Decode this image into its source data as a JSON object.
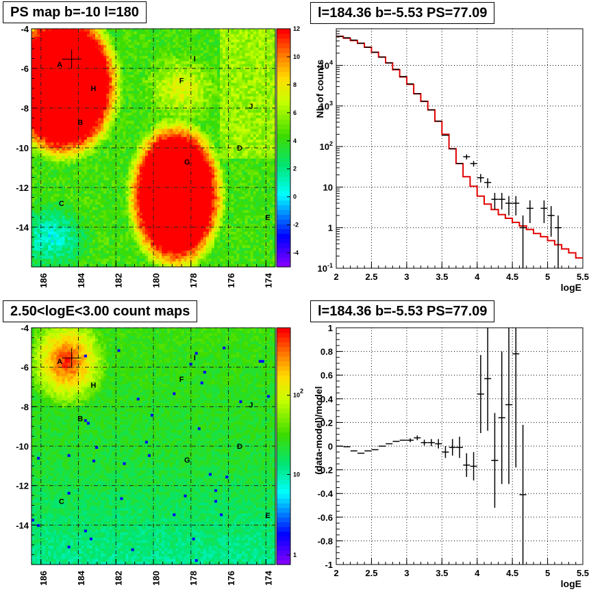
{
  "titles": {
    "tl": "PS map b=-10 l=180",
    "tr": "l=184.36 b=-5.53 PS=77.09",
    "bl": "2.50<logE<3.00 count maps",
    "br": "l=184.36 b=-5.53 PS=77.09"
  },
  "chart_data": [
    {
      "type": "heatmap",
      "panel": "ps-map",
      "title": "PS map b=-10 l=180",
      "xlim": [
        186.5,
        173.5
      ],
      "ylim": [
        -16,
        -4
      ],
      "x_ticks": [
        "186",
        "184",
        "182",
        "180",
        "178",
        "176",
        "174"
      ],
      "y_ticks": [
        "-4",
        "-6",
        "-8",
        "-10",
        "-12",
        "-14"
      ],
      "colorbar_range": [
        -5,
        12
      ],
      "colorbar_ticks": [
        "12",
        "10",
        "8",
        "6",
        "4",
        "2",
        "0",
        "-2",
        "-4"
      ],
      "grid": true,
      "markers": [
        {
          "label": "A",
          "l": 185.0,
          "b": -5.8
        },
        {
          "label": "H",
          "l": 183.2,
          "b": -7.0
        },
        {
          "label": "B",
          "l": 183.9,
          "b": -8.7
        },
        {
          "label": "I",
          "l": 177.8,
          "b": -5.5
        },
        {
          "label": "F",
          "l": 178.5,
          "b": -6.6
        },
        {
          "label": "J",
          "l": 174.8,
          "b": -7.9
        },
        {
          "label": "D",
          "l": 175.4,
          "b": -10.0
        },
        {
          "label": "G",
          "l": 178.2,
          "b": -10.7
        },
        {
          "label": "C",
          "l": 184.9,
          "b": -12.8
        },
        {
          "label": "E",
          "l": 173.9,
          "b": -13.5
        }
      ],
      "source_cross": {
        "l": 184.36,
        "b": -5.53
      }
    },
    {
      "type": "line",
      "panel": "spectrum",
      "title": "l=184.36 b=-5.53 PS=77.09",
      "xlabel": "logE",
      "ylabel": "Nb of counts",
      "xlim": [
        2,
        5.5
      ],
      "ylim": [
        0.1,
        80000
      ],
      "yscale": "log",
      "x_ticks": [
        "2",
        "2.5",
        "3",
        "3.5",
        "4",
        "4.5",
        "5",
        "5.5"
      ],
      "y_ticks": [
        "10^-1",
        "1",
        "10",
        "10^2",
        "10^3",
        "10^4"
      ],
      "grid": true,
      "model_color": "#e00000",
      "x_edges": [
        2.0,
        2.1,
        2.2,
        2.3,
        2.4,
        2.5,
        2.6,
        2.7,
        2.8,
        2.9,
        3.0,
        3.1,
        3.2,
        3.3,
        3.4,
        3.5,
        3.6,
        3.7,
        3.8,
        3.9,
        4.0,
        4.1,
        4.2,
        4.3,
        4.4,
        4.5,
        4.6,
        4.7,
        4.8,
        4.9,
        5.0,
        5.1,
        5.2,
        5.3,
        5.4,
        5.5
      ],
      "model": [
        52000,
        47000,
        41000,
        35000,
        28000,
        21000,
        16000,
        11500,
        7800,
        5200,
        3400,
        2000,
        1300,
        800,
        420,
        200,
        88,
        38,
        18,
        10.5,
        6,
        3.8,
        2.8,
        2.1,
        1.7,
        1.35,
        1.1,
        0.9,
        0.72,
        0.6,
        0.48,
        0.38,
        0.3,
        0.24,
        0.18
      ],
      "data": [
        {
          "x": 2.05,
          "y": 52000,
          "err": 0
        },
        {
          "x": 2.15,
          "y": 48000,
          "err": 0
        },
        {
          "x": 2.25,
          "y": 42000,
          "err": 0
        },
        {
          "x": 2.35,
          "y": 35000,
          "err": 0
        },
        {
          "x": 2.45,
          "y": 28000,
          "err": 0
        },
        {
          "x": 2.55,
          "y": 21000,
          "err": 0
        },
        {
          "x": 2.65,
          "y": 16000,
          "err": 0
        },
        {
          "x": 2.75,
          "y": 11500,
          "err": 0
        },
        {
          "x": 2.85,
          "y": 8000,
          "err": 0
        },
        {
          "x": 2.95,
          "y": 5300,
          "err": 0
        },
        {
          "x": 3.05,
          "y": 3500,
          "err": 0
        },
        {
          "x": 3.15,
          "y": 2000,
          "err": 0
        },
        {
          "x": 3.25,
          "y": 1300,
          "err": 0
        },
        {
          "x": 3.35,
          "y": 800,
          "err": 0
        },
        {
          "x": 3.45,
          "y": 420,
          "err": 0
        },
        {
          "x": 3.55,
          "y": 190,
          "err": 0
        },
        {
          "x": 3.65,
          "y": 88,
          "err": 0
        },
        {
          "x": 3.75,
          "y": 38,
          "err": 0
        },
        {
          "x": 3.85,
          "y": 56,
          "err": 8
        },
        {
          "x": 3.95,
          "y": 38,
          "err": 6
        },
        {
          "x": 4.05,
          "y": 17,
          "err": 4
        },
        {
          "x": 4.15,
          "y": 13,
          "err": 3.5
        },
        {
          "x": 4.25,
          "y": 5,
          "err": 2.2
        },
        {
          "x": 4.35,
          "y": 5,
          "err": 2.2
        },
        {
          "x": 4.45,
          "y": 4,
          "err": 2
        },
        {
          "x": 4.55,
          "y": 4,
          "err": 2
        },
        {
          "x": 4.65,
          "y": 1,
          "err": 1
        },
        {
          "x": 4.75,
          "y": 3,
          "err": 1.7
        },
        {
          "x": 4.95,
          "y": 3,
          "err": 1.7
        },
        {
          "x": 5.05,
          "y": 2,
          "err": 1.4
        },
        {
          "x": 5.15,
          "y": 1,
          "err": 1
        }
      ]
    },
    {
      "type": "heatmap",
      "panel": "count-map",
      "title": "2.50<logE<3.00 count maps",
      "xlim": [
        186.5,
        173.5
      ],
      "ylim": [
        -16,
        -4
      ],
      "x_ticks": [
        "186",
        "184",
        "182",
        "180",
        "178",
        "176",
        "174"
      ],
      "y_ticks": [
        "-4",
        "-6",
        "-8",
        "-10",
        "-12",
        "-14"
      ],
      "colorbar_scale": "log",
      "colorbar_ticks": [
        "10^2",
        "10",
        "1"
      ],
      "grid": true,
      "markers": [
        {
          "label": "A",
          "l": 185.0,
          "b": -5.7
        },
        {
          "label": "H",
          "l": 183.2,
          "b": -6.9
        },
        {
          "label": "B",
          "l": 183.9,
          "b": -8.6
        },
        {
          "label": "I",
          "l": 177.8,
          "b": -5.5
        },
        {
          "label": "F",
          "l": 178.5,
          "b": -6.6
        },
        {
          "label": "J",
          "l": 174.8,
          "b": -7.9
        },
        {
          "label": "D",
          "l": 175.4,
          "b": -10.0
        },
        {
          "label": "G",
          "l": 178.2,
          "b": -10.7
        },
        {
          "label": "C",
          "l": 184.9,
          "b": -12.8
        },
        {
          "label": "E",
          "l": 173.9,
          "b": -13.5
        }
      ],
      "source_cross": {
        "l": 184.36,
        "b": -5.53
      }
    },
    {
      "type": "scatter",
      "panel": "residuals",
      "title": "l=184.36 b=-5.53 PS=77.09",
      "xlabel": "logE",
      "ylabel": "(data-model)/model",
      "xlim": [
        2,
        5.5
      ],
      "ylim": [
        -1,
        1
      ],
      "x_ticks": [
        "2",
        "2.5",
        "3",
        "3.5",
        "4",
        "4.5",
        "5",
        "5.5"
      ],
      "y_ticks": [
        "1",
        "0.8",
        "0.6",
        "0.4",
        "0.2",
        "0",
        "-0.2",
        "-0.4",
        "-0.6",
        "-0.8",
        "-1"
      ],
      "grid": true,
      "points": [
        {
          "x": 2.05,
          "y": 0.0,
          "err": 0.005
        },
        {
          "x": 2.15,
          "y": -0.005,
          "err": 0.005
        },
        {
          "x": 2.25,
          "y": -0.04,
          "err": 0.006
        },
        {
          "x": 2.35,
          "y": -0.06,
          "err": 0.006
        },
        {
          "x": 2.45,
          "y": -0.04,
          "err": 0.007
        },
        {
          "x": 2.55,
          "y": -0.03,
          "err": 0.007
        },
        {
          "x": 2.65,
          "y": 0.0,
          "err": 0.008
        },
        {
          "x": 2.75,
          "y": 0.02,
          "err": 0.01
        },
        {
          "x": 2.85,
          "y": 0.04,
          "err": 0.012
        },
        {
          "x": 2.95,
          "y": 0.05,
          "err": 0.014
        },
        {
          "x": 3.05,
          "y": 0.05,
          "err": 0.016
        },
        {
          "x": 3.15,
          "y": 0.07,
          "err": 0.02
        },
        {
          "x": 3.25,
          "y": 0.03,
          "err": 0.025
        },
        {
          "x": 3.35,
          "y": 0.03,
          "err": 0.03
        },
        {
          "x": 3.45,
          "y": 0.02,
          "err": 0.04
        },
        {
          "x": 3.55,
          "y": -0.05,
          "err": 0.05
        },
        {
          "x": 3.65,
          "y": -0.01,
          "err": 0.07
        },
        {
          "x": 3.75,
          "y": -0.01,
          "err": 0.09
        },
        {
          "x": 3.85,
          "y": -0.16,
          "err": 0.1
        },
        {
          "x": 3.95,
          "y": -0.17,
          "err": 0.12
        },
        {
          "x": 4.05,
          "y": 0.44,
          "err": 0.33
        },
        {
          "x": 4.15,
          "y": 0.57,
          "err": 0.44
        },
        {
          "x": 4.25,
          "y": -0.12,
          "err": 0.4
        },
        {
          "x": 4.35,
          "y": 0.24,
          "err": 0.56
        },
        {
          "x": 4.45,
          "y": 0.35,
          "err": 0.67
        },
        {
          "x": 4.55,
          "y": 0.78,
          "err": 0.96
        },
        {
          "x": 4.65,
          "y": -0.41,
          "err": 0.59
        }
      ]
    }
  ]
}
